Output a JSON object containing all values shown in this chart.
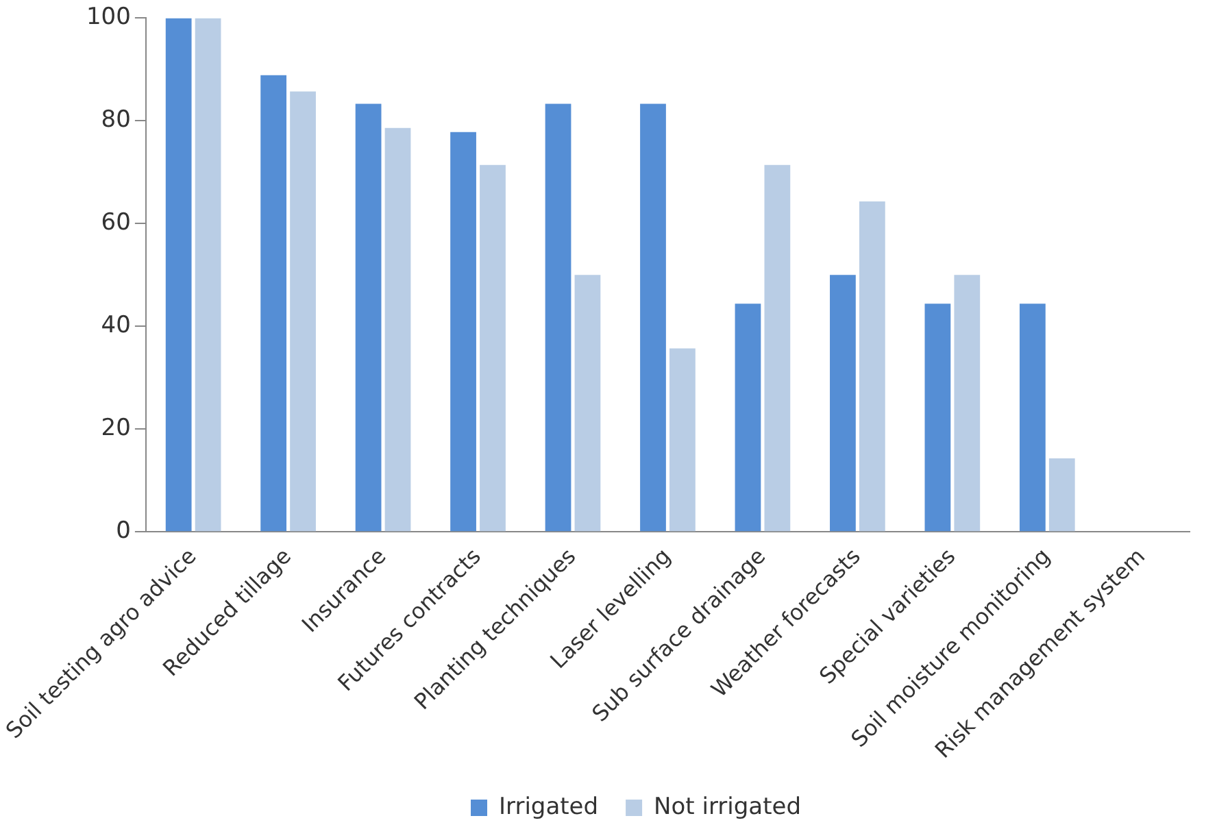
{
  "chart_data": {
    "type": "bar",
    "categories": [
      "Soil testing agro advice",
      "Reduced tillage",
      "Insurance",
      "Futures contracts",
      "Planting techniques",
      "Laser levelling",
      "Sub surface drainage",
      "Weather forecasts",
      "Special varieties",
      "Soil moisture monitoring",
      "Risk management system"
    ],
    "series": [
      {
        "name": "Irrigated",
        "color": "#558ed5",
        "values": [
          100,
          88.9,
          83.3,
          77.8,
          83.3,
          83.3,
          44.4,
          50,
          44.4,
          44.4,
          0
        ]
      },
      {
        "name": "Not irrigated",
        "color": "#b9cde5",
        "values": [
          100,
          85.7,
          78.6,
          71.4,
          50,
          35.7,
          71.4,
          64.3,
          50,
          14.3,
          0
        ]
      }
    ],
    "ylim": [
      0,
      100
    ],
    "yticks": [
      0,
      20,
      40,
      60,
      80,
      100
    ],
    "grid": false,
    "legend": "bottom"
  }
}
